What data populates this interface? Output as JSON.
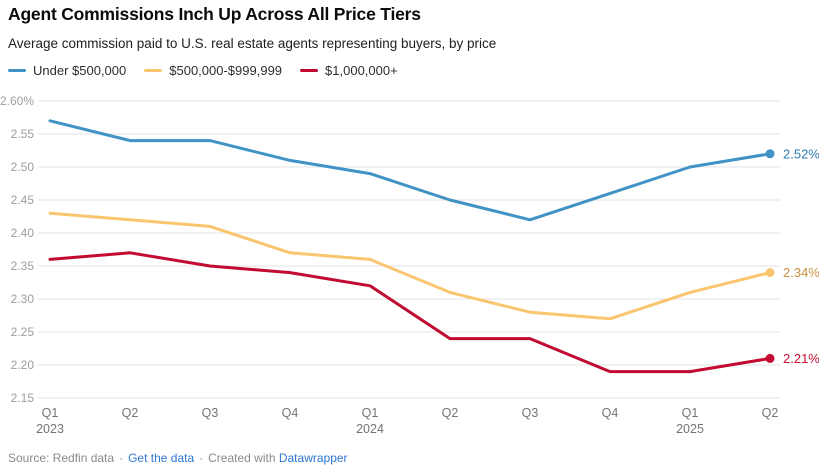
{
  "header": {
    "title": "Agent Commissions Inch Up Across All Price Tiers",
    "subtitle": "Average commission paid to U.S. real estate agents representing buyers, by price"
  },
  "legend": {
    "items": [
      {
        "label": "Under $500,000",
        "color": "#4193c5"
      },
      {
        "label": "$500,000-$999,999",
        "color": "#f9c66f"
      },
      {
        "label": "$1,000,000+",
        "color": "#c10b33"
      }
    ]
  },
  "chart_data": {
    "type": "line",
    "title": "Agent Commissions Inch Up Across All Price Tiers",
    "subtitle": "Average commission paid to U.S. real estate agents representing buyers, by price",
    "x": [
      "Q1 2023",
      "Q2 2023",
      "Q3 2023",
      "Q4 2023",
      "Q1 2024",
      "Q2 2024",
      "Q3 2024",
      "Q4 2024",
      "Q1 2025",
      "Q2 2025"
    ],
    "x_tick_labels": [
      [
        "Q1",
        "2023"
      ],
      [
        "Q2"
      ],
      [
        "Q3"
      ],
      [
        "Q4"
      ],
      [
        "Q1",
        "2024"
      ],
      [
        "Q2"
      ],
      [
        "Q3"
      ],
      [
        "Q4"
      ],
      [
        "Q1",
        "2025"
      ],
      [
        "Q2"
      ]
    ],
    "series": [
      {
        "name": "Under $500,000",
        "color": "#4193c5",
        "label_color": "#2e7cb0",
        "values": [
          2.57,
          2.54,
          2.54,
          2.51,
          2.49,
          2.45,
          2.42,
          2.46,
          2.5,
          2.52
        ],
        "end_label": "2.52%"
      },
      {
        "name": "$500,000-$999,999",
        "color": "#f9c66f",
        "label_color": "#c8913d",
        "values": [
          2.43,
          2.42,
          2.41,
          2.37,
          2.36,
          2.31,
          2.28,
          2.27,
          2.31,
          2.34
        ],
        "end_label": "2.34%"
      },
      {
        "name": "$1,000,000+",
        "color": "#c10b33",
        "label_color": "#c50f2e",
        "values": [
          2.36,
          2.37,
          2.35,
          2.34,
          2.32,
          2.24,
          2.24,
          2.19,
          2.19,
          2.21
        ],
        "end_label": "2.21%"
      }
    ],
    "ylim": [
      2.15,
      2.6
    ],
    "y_ticks": [
      2.6,
      2.55,
      2.5,
      2.45,
      2.4,
      2.35,
      2.3,
      2.25,
      2.2,
      2.15
    ],
    "y_tick_labels": [
      "2.60%",
      "2.55",
      "2.50",
      "2.45",
      "2.40",
      "2.35",
      "2.30",
      "2.25",
      "2.20",
      "2.15"
    ],
    "ylabel": "",
    "xlabel": "",
    "grid": true,
    "legend_position": "top"
  },
  "footer": {
    "source": "Source: Redfin data",
    "separator": "·",
    "get_data_label": "Get the data",
    "created_with": "Created with",
    "datawrapper_label": "Datawrapper",
    "link_color": "#2e77d0"
  }
}
